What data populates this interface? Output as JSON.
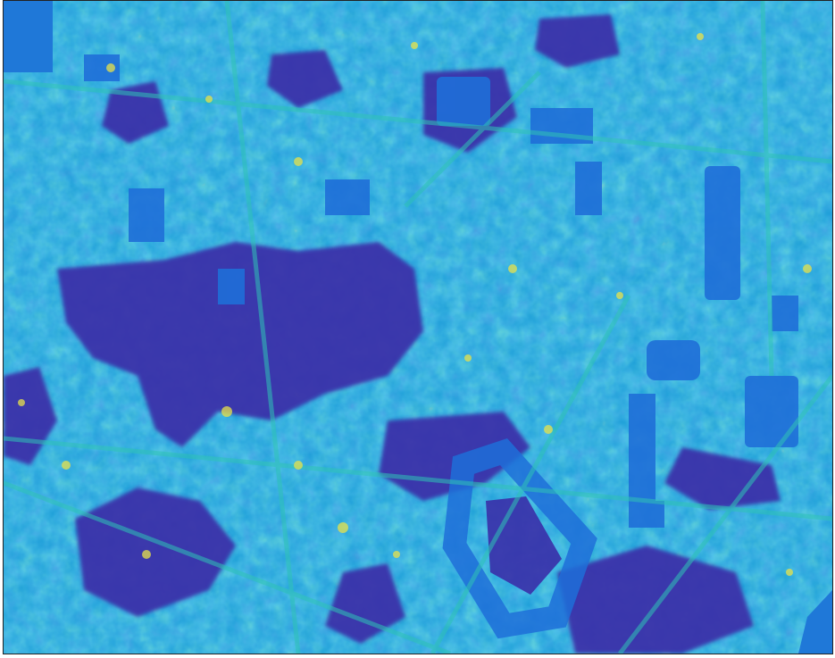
{
  "image": {
    "description_type": "false-color raster map",
    "colormap": {
      "low": "#3b2fa8",
      "mid_low": "#1f6fd8",
      "mid": "#1e9fd9",
      "mid_high": "#2fc3b6",
      "high": "#e8e24a"
    }
  }
}
